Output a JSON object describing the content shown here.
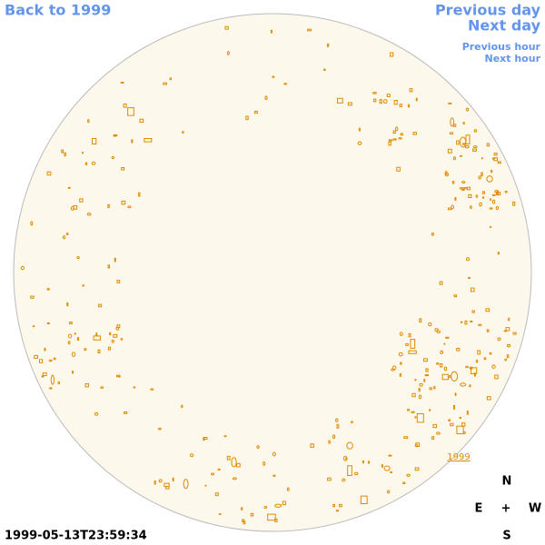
{
  "nav": {
    "back": "Back to 1999",
    "previous_day": "Previous day",
    "next_day": "Next day",
    "previous_hour": "Previous hour",
    "next_hour": "Next hour"
  },
  "disk": {
    "year_link": "1999"
  },
  "compass": {
    "north": "N",
    "east": "E",
    "center": "+",
    "west": "W",
    "south": "S"
  },
  "timestamp": "1999-05-13T23:59:34"
}
